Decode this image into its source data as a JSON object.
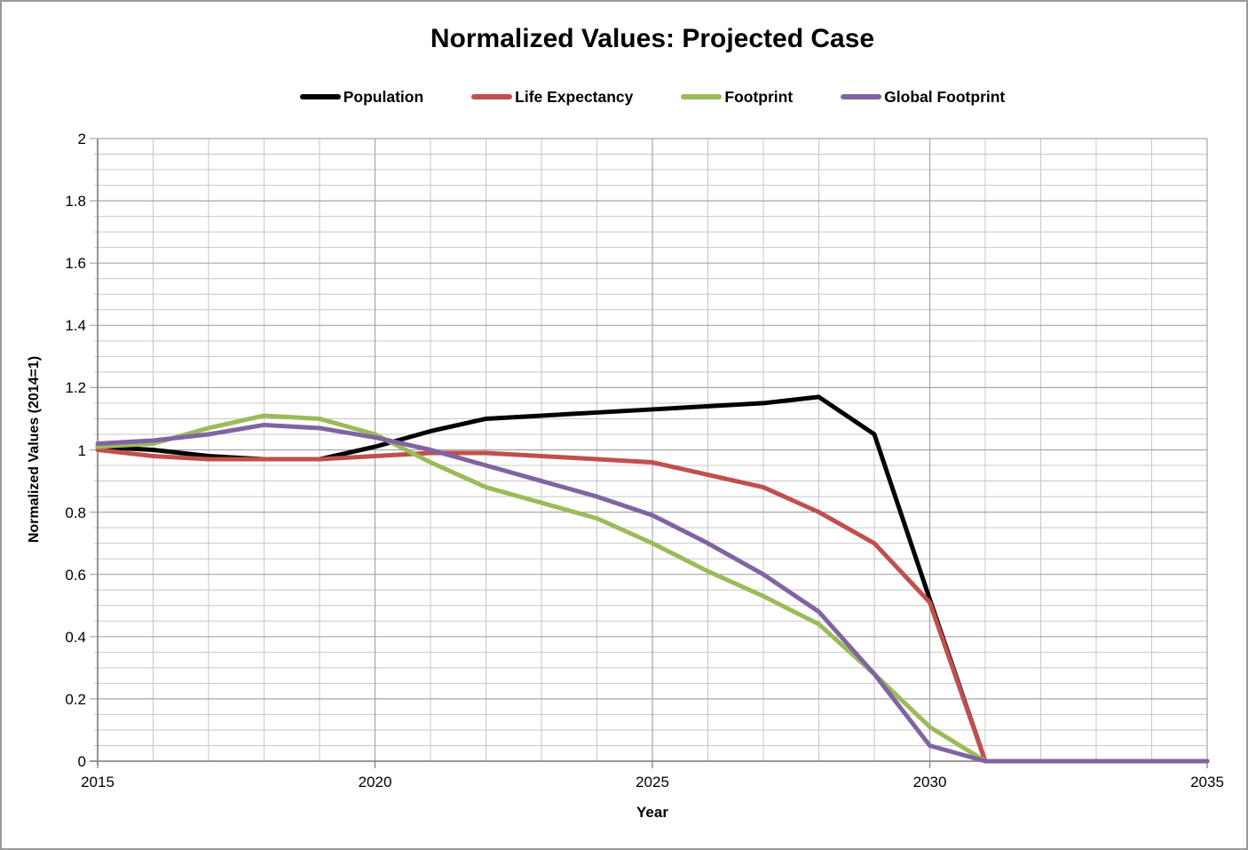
{
  "title": "Normalized Values: Projected Case",
  "chart_data": {
    "type": "line",
    "title": "Normalized Values: Projected Case",
    "xlabel": "Year",
    "ylabel": "Normalized Values (2014=1)",
    "xlim": [
      2015,
      2035
    ],
    "ylim": [
      0,
      2
    ],
    "x_minor_step": 1,
    "y_minor_step": 0.05,
    "grid": "major-and-minor",
    "legend_position": "top",
    "x_ticks": [
      [
        2015,
        "2015"
      ],
      [
        2020,
        "2020"
      ],
      [
        2025,
        "2025"
      ],
      [
        2030,
        "2030"
      ],
      [
        2035,
        "2035"
      ]
    ],
    "y_ticks": [
      [
        0,
        "0"
      ],
      [
        0.2,
        "0.2"
      ],
      [
        0.4,
        "0.4"
      ],
      [
        0.6,
        "0.6"
      ],
      [
        0.8,
        "0.8"
      ],
      [
        1,
        "1"
      ],
      [
        1.2,
        "1.2"
      ],
      [
        1.4,
        "1.4"
      ],
      [
        1.6,
        "1.6"
      ],
      [
        1.8,
        "1.8"
      ],
      [
        2,
        "2"
      ]
    ],
    "x": [
      2015,
      2016,
      2017,
      2018,
      2019,
      2020,
      2021,
      2022,
      2023,
      2024,
      2025,
      2026,
      2027,
      2028,
      2029,
      2030,
      2031,
      2032,
      2033,
      2034,
      2035
    ],
    "series": [
      {
        "name": "Population",
        "color": "#000000",
        "values": [
          1.01,
          1.0,
          0.98,
          0.97,
          0.97,
          1.01,
          1.06,
          1.1,
          1.11,
          1.12,
          1.13,
          1.14,
          1.15,
          1.17,
          1.05,
          0.52,
          0,
          0,
          0,
          0,
          0
        ]
      },
      {
        "name": "Life Expectancy",
        "color": "#C0504D",
        "values": [
          1.0,
          0.98,
          0.97,
          0.97,
          0.97,
          0.98,
          0.99,
          0.99,
          0.98,
          0.97,
          0.96,
          0.92,
          0.88,
          0.8,
          0.7,
          0.51,
          0,
          0,
          0,
          0,
          0
        ]
      },
      {
        "name": "Footprint",
        "color": "#9BBB59",
        "values": [
          1.01,
          1.02,
          1.07,
          1.11,
          1.1,
          1.05,
          0.96,
          0.88,
          0.83,
          0.78,
          0.7,
          0.61,
          0.53,
          0.44,
          0.28,
          0.11,
          0,
          0,
          0,
          0,
          0
        ]
      },
      {
        "name": "Global Footprint",
        "color": "#8064A2",
        "values": [
          1.02,
          1.03,
          1.05,
          1.08,
          1.07,
          1.04,
          1.0,
          0.95,
          0.9,
          0.85,
          0.79,
          0.7,
          0.6,
          0.48,
          0.28,
          0.05,
          0,
          0,
          0,
          0,
          0
        ]
      }
    ]
  },
  "colors": {
    "grid_minor": "#C7C7C7",
    "grid_major": "#A6A6A6",
    "axis": "#8A8A8A",
    "frame_border": "#999999",
    "text": "#000000"
  }
}
